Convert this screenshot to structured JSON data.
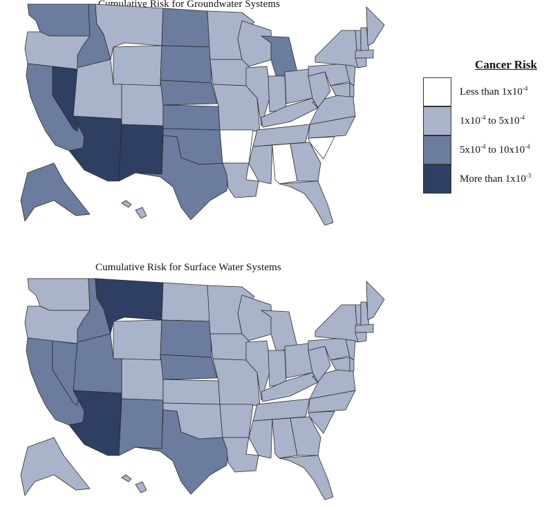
{
  "maps": [
    {
      "id": "gw",
      "title": "Cumulative Risk for Groundwater Systems",
      "states": {
        "WA": "c3",
        "OR": "c2",
        "CA": "c3",
        "NV": "c4",
        "ID": "c3",
        "MT": "c2",
        "WY": "c2",
        "UT": "c2",
        "AZ": "c4",
        "CO": "c2",
        "NM": "c4",
        "ND": "c3",
        "SD": "c3",
        "NE": "c3",
        "KS": "c3",
        "OK": "c3",
        "TX": "c3",
        "MN": "c2",
        "IA": "c2",
        "MO": "c2",
        "AR": "c1",
        "LA": "c2",
        "WI": "c2",
        "IL": "c2",
        "MI": "c3",
        "IN": "c2",
        "OH": "c2",
        "KY": "c2",
        "TN": "c2",
        "MS": "c2",
        "AL": "c1",
        "GA": "c2",
        "FL": "c2",
        "SC": "c1",
        "NC": "c2",
        "VA": "c2",
        "WV": "c2",
        "PA": "c2",
        "NY": "c2",
        "VT": "c2",
        "NH": "c2",
        "ME": "c2",
        "MA": "c2",
        "CT": "c2",
        "NJ": "c2",
        "DE": "c2",
        "MD": "c2",
        "AK": "c3",
        "HI": "c2"
      }
    },
    {
      "id": "sw",
      "title": "Cumulative Risk for Surface Water Systems",
      "states": {
        "WA": "c2",
        "OR": "c2",
        "CA": "c3",
        "NV": "c3",
        "ID": "c3",
        "MT": "c4",
        "WY": "c2",
        "UT": "c3",
        "AZ": "c4",
        "CO": "c2",
        "NM": "c3",
        "ND": "c2",
        "SD": "c3",
        "NE": "c3",
        "KS": "c2",
        "OK": "c2",
        "TX": "c3",
        "MN": "c2",
        "IA": "c2",
        "MO": "c2",
        "AR": "c2",
        "LA": "c2",
        "WI": "c2",
        "IL": "c2",
        "MI": "c2",
        "IN": "c2",
        "OH": "c2",
        "KY": "c2",
        "TN": "c2",
        "MS": "c2",
        "AL": "c2",
        "GA": "c2",
        "FL": "c2",
        "SC": "c2",
        "NC": "c2",
        "VA": "c2",
        "WV": "c2",
        "PA": "c2",
        "NY": "c2",
        "VT": "c2",
        "NH": "c2",
        "ME": "c2",
        "MA": "c2",
        "CT": "c2",
        "NJ": "c2",
        "DE": "c2",
        "MD": "c2",
        "AK": "c2",
        "HI": "c2"
      }
    }
  ],
  "legend": {
    "title": "Cancer Risk",
    "items": [
      {
        "key": "c1",
        "color": "#ffffff",
        "text": "Less than 1x10",
        "sup": "-4",
        "text2": "",
        "sup2": ""
      },
      {
        "key": "c2",
        "color": "#a9b3c9",
        "text": "1x10",
        "sup": "-4",
        "text2": " to 5x10",
        "sup2": "-4"
      },
      {
        "key": "c3",
        "color": "#6b7c9e",
        "text": "5x10",
        "sup": "-4",
        "text2": " to 10x10",
        "sup2": "-4"
      },
      {
        "key": "c4",
        "color": "#2e3f63",
        "text": "More than 1x10",
        "sup": "-3",
        "text2": "",
        "sup2": ""
      }
    ]
  }
}
